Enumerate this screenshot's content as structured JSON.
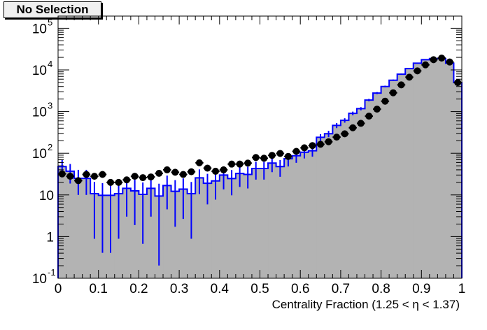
{
  "title": "No Selection",
  "chart_data": {
    "type": "bar",
    "title": "No Selection",
    "xlabel": "Centrality Fraction (1.25 <   η < 1.37)",
    "ylabel": "",
    "xlim": [
      0,
      1
    ],
    "ylim": [
      0.1,
      150000
    ],
    "y_scale": "log",
    "grid": false,
    "x_tick_labels": [
      "0",
      "0.1",
      "0.2",
      "0.3",
      "0.4",
      "0.5",
      "0.6",
      "0.7",
      "0.8",
      "0.9",
      "1"
    ],
    "y_tick_labels": [
      {
        "base": "10",
        "exp": "-1"
      },
      {
        "base": "1",
        "exp": ""
      },
      {
        "base": "10",
        "exp": ""
      },
      {
        "base": "10",
        "exp": "2"
      },
      {
        "base": "10",
        "exp": "3"
      },
      {
        "base": "10",
        "exp": "4"
      },
      {
        "base": "10",
        "exp": "5"
      }
    ],
    "bin_width": 0.02,
    "colors": {
      "histogram_line": "#0000ff",
      "histogram_fill": "#b3b3b3",
      "data_points": "#000000"
    },
    "series": [
      {
        "style": "filled histogram with error bars",
        "values": [
          48,
          37,
          25,
          25,
          10.7,
          9.8,
          9.8,
          10.7,
          14.4,
          12.5,
          10.3,
          14.4,
          9.4,
          16.8,
          12.2,
          13.8,
          10.7,
          25.7,
          19,
          21.7,
          30,
          24.7,
          32.7,
          31,
          43,
          43,
          58,
          48,
          74,
          87,
          106,
          115,
          241,
          295,
          466,
          617,
          908,
          1175,
          1891,
          2785,
          4000,
          5660,
          7890,
          10760,
          14480,
          17580,
          18750,
          18750,
          14480,
          4970
        ]
      },
      {
        "style": "markers with error bars",
        "values": [
          32,
          28,
          22,
          31,
          28,
          31,
          20,
          20,
          23,
          28,
          26,
          27,
          33,
          40,
          35,
          31,
          36,
          59,
          44,
          37,
          40,
          55,
          55,
          58,
          79,
          76,
          89,
          99,
          84,
          111,
          135,
          153,
          164,
          189,
          244,
          293,
          409,
          522,
          778,
          1146,
          1778,
          2825,
          4375,
          6700,
          9480,
          13240,
          17580,
          19230,
          15500,
          4970
        ]
      }
    ]
  }
}
